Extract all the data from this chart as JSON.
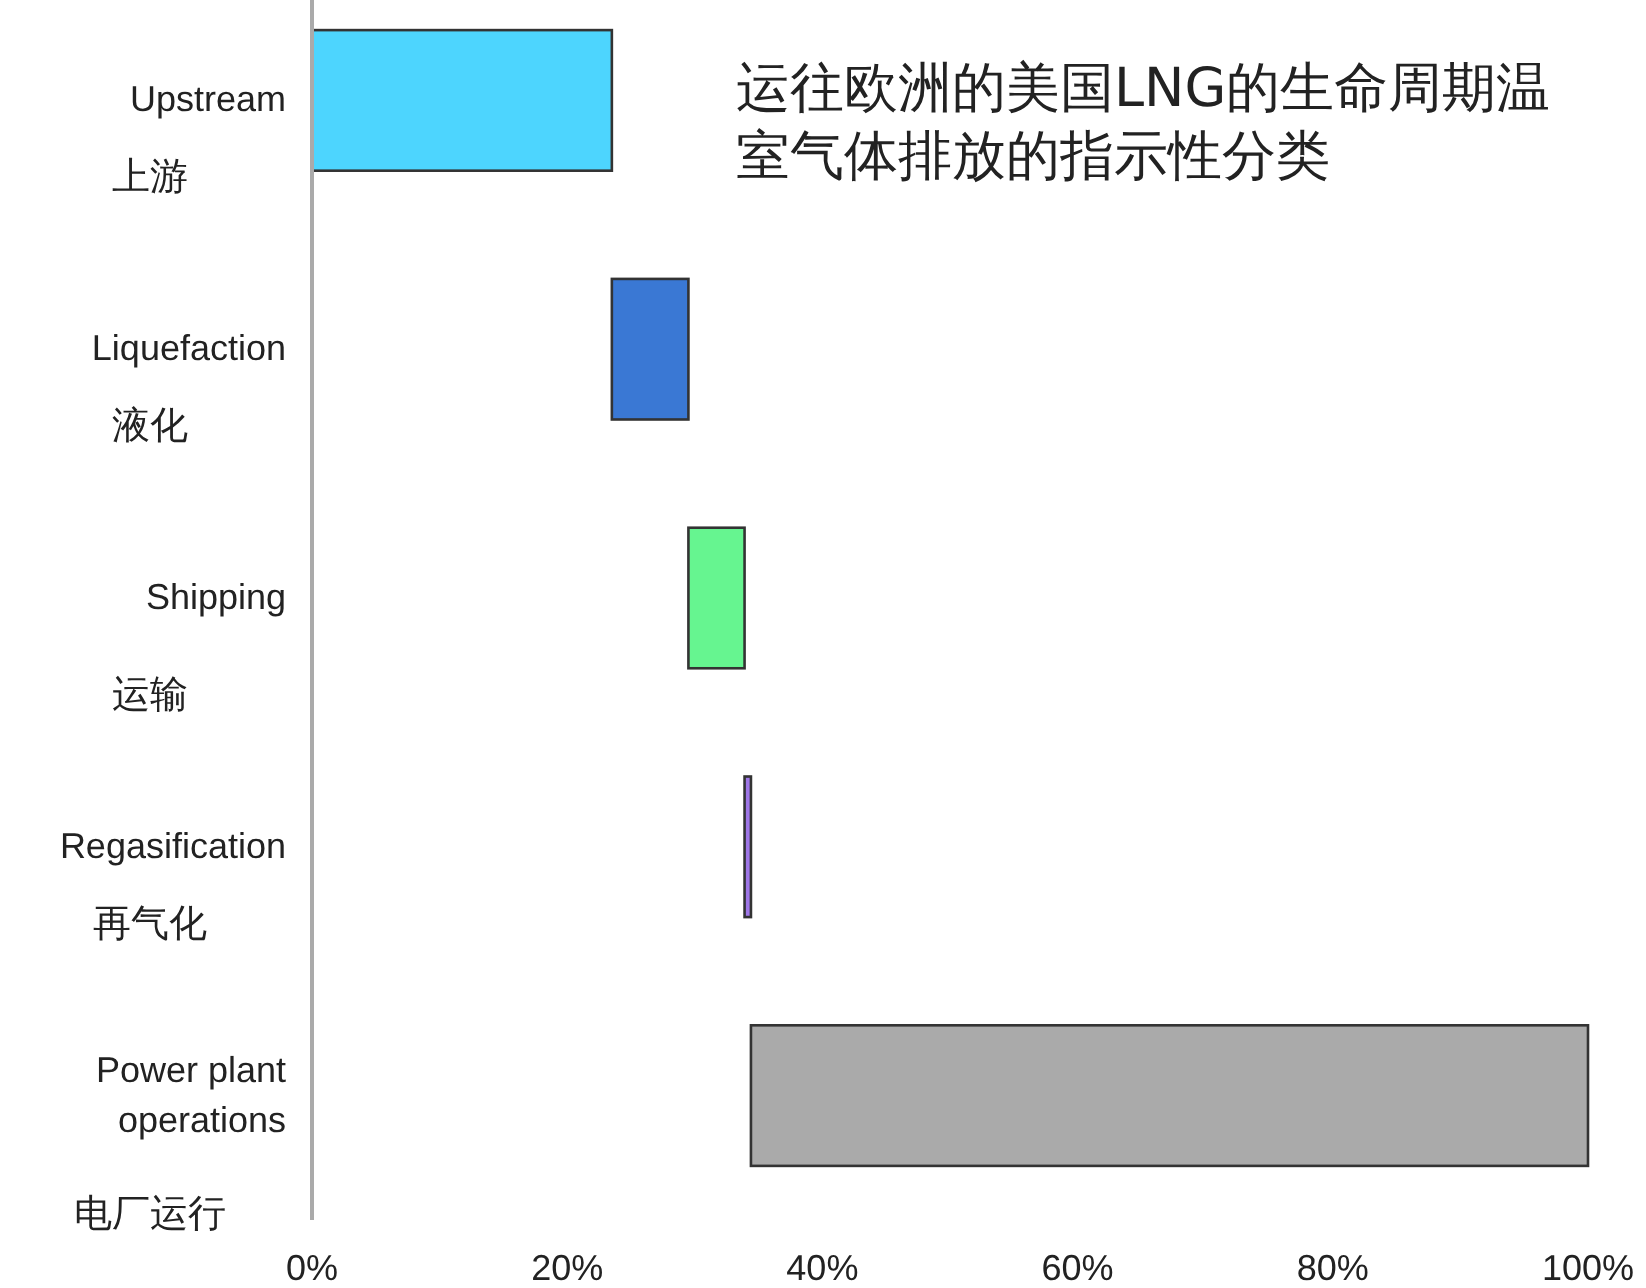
{
  "chart_data": {
    "type": "bar",
    "orientation": "horizontal",
    "title": "运往欧洲的美国LNG的生命周期温室气体排放的指示性分类",
    "categories": [
      "Upstream\n上游",
      "Liquefaction\n液化",
      "Shipping\n运输",
      "Regasification\n再气化",
      "Power plant\noperations\n电厂运行"
    ],
    "base": [
      0,
      23.5,
      29.5,
      33.9,
      34.4
    ],
    "values": [
      23.5,
      6,
      4.4,
      0.5,
      65.6
    ],
    "colors": [
      "#4dd5fe",
      "#3a78d4",
      "#66f590",
      "#9f77e8",
      "#aaaaaa"
    ],
    "xlim": [
      0,
      100
    ],
    "xticks": [
      {
        "value": 0,
        "label": "0%"
      },
      {
        "value": 20,
        "label": "20%"
      },
      {
        "value": 40,
        "label": "40%"
      },
      {
        "value": 60,
        "label": "60%"
      },
      {
        "value": 80,
        "label": "80%"
      },
      {
        "value": 100,
        "label": "100%"
      }
    ],
    "grid": false
  }
}
